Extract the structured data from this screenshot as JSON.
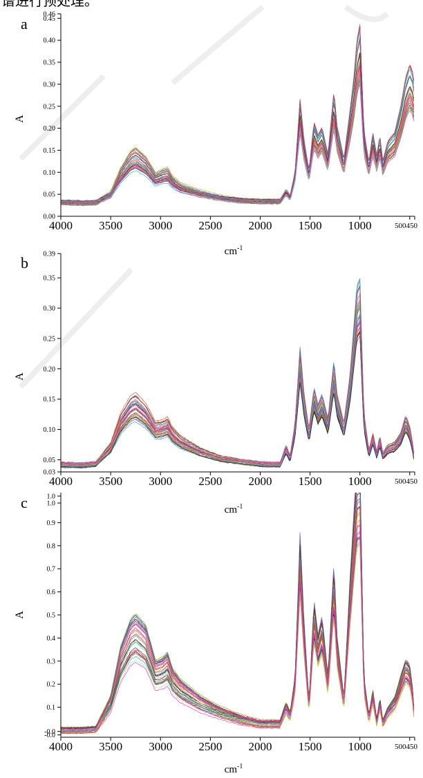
{
  "top_text": "谱进行预处理。",
  "chart_data": [
    {
      "type": "line",
      "panel": "a",
      "xlabel": "cm-1",
      "ylabel": "A",
      "x_ticks": [
        "4000",
        "3500",
        "3000",
        "2500",
        "2000",
        "1500",
        "1000",
        "500450"
      ],
      "y_ticks": [
        "0.00",
        "0.05",
        "0.10",
        "0.15",
        "0.20",
        "0.25",
        "0.30",
        "0.35",
        "0.40",
        "0.45",
        "0.46"
      ],
      "xlim": [
        4000,
        450
      ],
      "ylim": [
        0.0,
        0.46
      ],
      "x_reversed": true,
      "grid": false,
      "legend": "none",
      "series_count": 40,
      "representative_spectrum": {
        "x": [
          4000,
          3800,
          3650,
          3500,
          3400,
          3300,
          3250,
          3150,
          3050,
          2980,
          2930,
          2880,
          2800,
          2600,
          2400,
          2200,
          2000,
          1800,
          1740,
          1700,
          1650,
          1600,
          1560,
          1510,
          1460,
          1420,
          1380,
          1320,
          1260,
          1230,
          1160,
          1100,
          1060,
          1030,
          1000,
          960,
          910,
          870,
          830,
          800,
          770,
          720,
          650,
          590,
          540,
          500,
          470,
          450
        ],
        "y": [
          0.032,
          0.03,
          0.031,
          0.05,
          0.095,
          0.128,
          0.135,
          0.118,
          0.086,
          0.093,
          0.096,
          0.08,
          0.066,
          0.052,
          0.042,
          0.036,
          0.034,
          0.034,
          0.055,
          0.042,
          0.09,
          0.228,
          0.15,
          0.092,
          0.185,
          0.16,
          0.175,
          0.122,
          0.245,
          0.178,
          0.115,
          0.205,
          0.27,
          0.34,
          0.37,
          0.17,
          0.108,
          0.165,
          0.12,
          0.16,
          0.11,
          0.148,
          0.165,
          0.215,
          0.27,
          0.295,
          0.28,
          0.25
        ]
      }
    },
    {
      "type": "line",
      "panel": "b",
      "xlabel": "cm-1",
      "ylabel": "A",
      "x_ticks": [
        "4000",
        "3500",
        "3000",
        "2500",
        "2000",
        "1500",
        "1000",
        "500450"
      ],
      "y_ticks": [
        "0.03",
        "0.05",
        "0.10",
        "0.15",
        "0.20",
        "0.25",
        "0.30",
        "0.35",
        "0.39"
      ],
      "xlim": [
        4000,
        450
      ],
      "ylim": [
        0.03,
        0.39
      ],
      "x_reversed": true,
      "grid": false,
      "legend": "none",
      "series_count": 40,
      "representative_spectrum": {
        "x": [
          4000,
          3800,
          3650,
          3500,
          3400,
          3300,
          3250,
          3150,
          3050,
          2980,
          2930,
          2880,
          2800,
          2600,
          2400,
          2200,
          2000,
          1800,
          1740,
          1700,
          1650,
          1600,
          1560,
          1510,
          1460,
          1420,
          1380,
          1320,
          1260,
          1230,
          1160,
          1100,
          1060,
          1030,
          1000,
          960,
          910,
          870,
          830,
          800,
          770,
          720,
          650,
          590,
          540,
          500,
          470,
          450
        ],
        "y": [
          0.042,
          0.041,
          0.043,
          0.07,
          0.112,
          0.135,
          0.14,
          0.125,
          0.1,
          0.102,
          0.106,
          0.092,
          0.08,
          0.063,
          0.052,
          0.047,
          0.043,
          0.042,
          0.068,
          0.052,
          0.1,
          0.205,
          0.14,
          0.09,
          0.15,
          0.125,
          0.14,
          0.105,
          0.188,
          0.14,
          0.1,
          0.165,
          0.235,
          0.29,
          0.3,
          0.115,
          0.06,
          0.085,
          0.058,
          0.082,
          0.056,
          0.068,
          0.072,
          0.085,
          0.11,
          0.095,
          0.07,
          0.045
        ]
      }
    },
    {
      "type": "line",
      "panel": "c",
      "xlabel": "cm-1",
      "ylabel": "A",
      "x_ticks": [
        "4000",
        "3500",
        "3000",
        "2500",
        "2000",
        "1500",
        "1000",
        "500450"
      ],
      "y_ticks": [
        "-0.0",
        "-0.0",
        "0.1",
        "0.2",
        "0.3",
        "0.4",
        "0.5",
        "0.6",
        "0.7",
        "0.8",
        "0.9",
        "1.0",
        "1.0"
      ],
      "xlim": [
        4000,
        450
      ],
      "ylim": [
        -0.03,
        1.03
      ],
      "x_reversed": true,
      "grid": false,
      "legend": "none",
      "series_count": 40,
      "representative_spectrum": {
        "x": [
          4000,
          3800,
          3650,
          3500,
          3400,
          3300,
          3250,
          3150,
          3050,
          2980,
          2930,
          2880,
          2800,
          2600,
          2400,
          2200,
          2000,
          1800,
          1740,
          1700,
          1650,
          1600,
          1560,
          1510,
          1460,
          1420,
          1380,
          1320,
          1260,
          1230,
          1160,
          1100,
          1060,
          1030,
          1000,
          960,
          910,
          870,
          830,
          800,
          770,
          720,
          650,
          590,
          540,
          500,
          470,
          450
        ],
        "y": [
          0.0,
          0.0,
          0.005,
          0.12,
          0.3,
          0.4,
          0.42,
          0.38,
          0.25,
          0.26,
          0.28,
          0.22,
          0.18,
          0.12,
          0.08,
          0.05,
          0.03,
          0.03,
          0.1,
          0.06,
          0.2,
          0.72,
          0.4,
          0.1,
          0.48,
          0.35,
          0.42,
          0.2,
          0.62,
          0.35,
          0.12,
          0.55,
          0.8,
          0.98,
          0.99,
          0.2,
          0.05,
          0.15,
          0.03,
          0.12,
          0.03,
          0.08,
          0.12,
          0.2,
          0.26,
          0.24,
          0.15,
          0.02
        ]
      }
    }
  ]
}
